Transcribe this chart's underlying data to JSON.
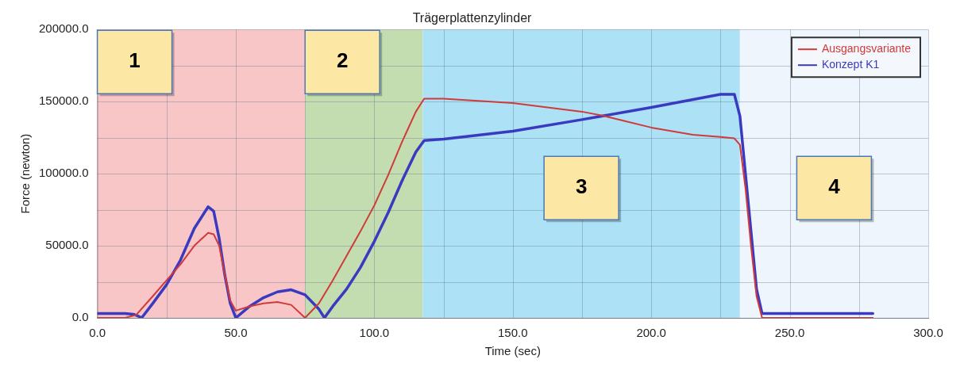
{
  "chart_data": {
    "type": "line",
    "title": "Trägerplattenzylinder",
    "xlabel": "Time (sec)",
    "ylabel": "Force (newton)",
    "xlim": [
      0,
      300
    ],
    "xticks": [
      {
        "value": 0,
        "label": "0.0"
      },
      {
        "value": 25,
        "label": null
      },
      {
        "value": 50,
        "label": "50.0"
      },
      {
        "value": 75,
        "label": null
      },
      {
        "value": 100,
        "label": "100.0"
      },
      {
        "value": 125,
        "label": null
      },
      {
        "value": 150,
        "label": "150.0"
      },
      {
        "value": 175,
        "label": null
      },
      {
        "value": 200,
        "label": "200.0"
      },
      {
        "value": 225,
        "label": null
      },
      {
        "value": 250,
        "label": "250.0"
      },
      {
        "value": 275,
        "label": null
      },
      {
        "value": 300,
        "label": "300.0"
      }
    ],
    "ylim": [
      0,
      200000
    ],
    "yticks": [
      {
        "value": 0,
        "label": "0.0"
      },
      {
        "value": 25000,
        "label": null
      },
      {
        "value": 50000,
        "label": "50000.0"
      },
      {
        "value": 75000,
        "label": null
      },
      {
        "value": 100000,
        "label": "100000.0"
      },
      {
        "value": 125000,
        "label": null
      },
      {
        "value": 150000,
        "label": "150000.0"
      },
      {
        "value": 175000,
        "label": null
      },
      {
        "value": 200000,
        "label": "200000.0"
      }
    ],
    "grid": true,
    "legend": "top right",
    "marker": "none",
    "line_style": "solid",
    "bands": [
      {
        "axis": "x",
        "from": 0,
        "to": 75,
        "label": "1",
        "color": "#f9c6c8"
      },
      {
        "axis": "x",
        "from": 75,
        "to": 117.5,
        "label": "2",
        "color": "#c3dcb0"
      },
      {
        "axis": "x",
        "from": 117.5,
        "to": 232,
        "label": "3",
        "color": "#ade2f6"
      },
      {
        "axis": "x",
        "from": 232,
        "to": 300,
        "label": "4",
        "color": "#eef5fc"
      }
    ],
    "series": [
      {
        "name": "Ausgangsvariante",
        "color": "#d03a3a",
        "x": [
          0,
          10,
          14,
          20,
          25,
          30,
          35,
          40,
          42,
          44,
          46,
          48,
          50,
          55,
          60,
          65,
          70,
          75,
          80,
          85,
          90,
          95,
          100,
          105,
          110,
          115,
          118,
          125,
          150,
          175,
          183,
          200,
          215,
          225,
          230,
          232,
          234,
          236,
          238,
          240,
          280
        ],
        "values": [
          0,
          0,
          2000,
          15000,
          26000,
          37000,
          50000,
          59000,
          58000,
          50000,
          30000,
          12000,
          5000,
          8000,
          10000,
          11000,
          9000,
          0,
          10000,
          26000,
          43000,
          60000,
          78000,
          99000,
          122000,
          143000,
          152000,
          152000,
          149000,
          143000,
          140000,
          132000,
          127000,
          125500,
          124500,
          120000,
          90000,
          50000,
          15000,
          0,
          0
        ]
      },
      {
        "name": "Konzept K1",
        "color": "#3a3ac0",
        "x": [
          0,
          10,
          13,
          15,
          16,
          20,
          25,
          30,
          35,
          40,
          42,
          44,
          46,
          48,
          50,
          55,
          60,
          65,
          70,
          75,
          80,
          82,
          85,
          90,
          95,
          100,
          105,
          110,
          115,
          118,
          125,
          150,
          175,
          200,
          225,
          230,
          232,
          234,
          236,
          238,
          240,
          280
        ],
        "values": [
          3000,
          3000,
          2500,
          1000,
          0,
          10000,
          23000,
          40000,
          62000,
          77000,
          74000,
          55000,
          30000,
          10000,
          0,
          8000,
          14000,
          18000,
          19500,
          16000,
          6000,
          0,
          8000,
          20000,
          35000,
          53000,
          73000,
          95000,
          115000,
          123000,
          124000,
          129500,
          137500,
          146000,
          155000,
          155000,
          140000,
          100000,
          60000,
          20000,
          3000,
          3000
        ]
      }
    ]
  }
}
